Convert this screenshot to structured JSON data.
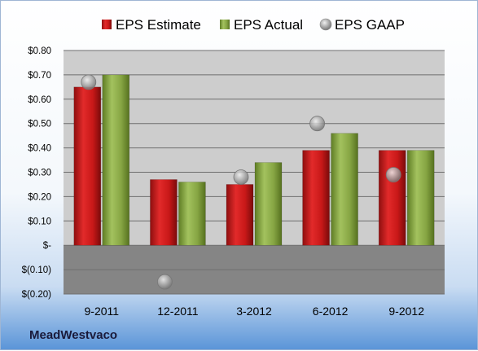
{
  "company": "MeadWestvaco",
  "colors": {
    "estimate": "#d21f1f",
    "actual": "#8fb04a",
    "gaap": "#a9a9a9",
    "plot_pos": "#cdcdcd",
    "plot_neg": "#858585"
  },
  "chart_data": {
    "type": "bar",
    "title": "",
    "xlabel": "",
    "ylabel": "",
    "categories": [
      "9-2011",
      "12-2011",
      "3-2012",
      "6-2012",
      "9-2012"
    ],
    "series": [
      {
        "name": "EPS Estimate",
        "kind": "bar",
        "values": [
          0.65,
          0.27,
          0.25,
          0.39,
          0.39
        ]
      },
      {
        "name": "EPS Actual",
        "kind": "bar",
        "values": [
          0.7,
          0.26,
          0.34,
          0.46,
          0.39
        ]
      },
      {
        "name": "EPS GAAP",
        "kind": "marker",
        "values": [
          0.67,
          -0.15,
          0.28,
          0.5,
          0.29
        ]
      }
    ],
    "ylim": [
      -0.2,
      0.8
    ],
    "yticks": [
      0.8,
      0.7,
      0.6,
      0.5,
      0.4,
      0.3,
      0.2,
      0.1,
      0.0,
      -0.1,
      -0.2
    ],
    "ytick_labels": [
      "$0.80",
      "$0.70",
      "$0.60",
      "$0.50",
      "$0.40",
      "$0.30",
      "$0.20",
      "$0.10",
      "$-",
      "$(0.10)",
      "$(0.20)"
    ],
    "grid": true,
    "legend_position": "top"
  }
}
